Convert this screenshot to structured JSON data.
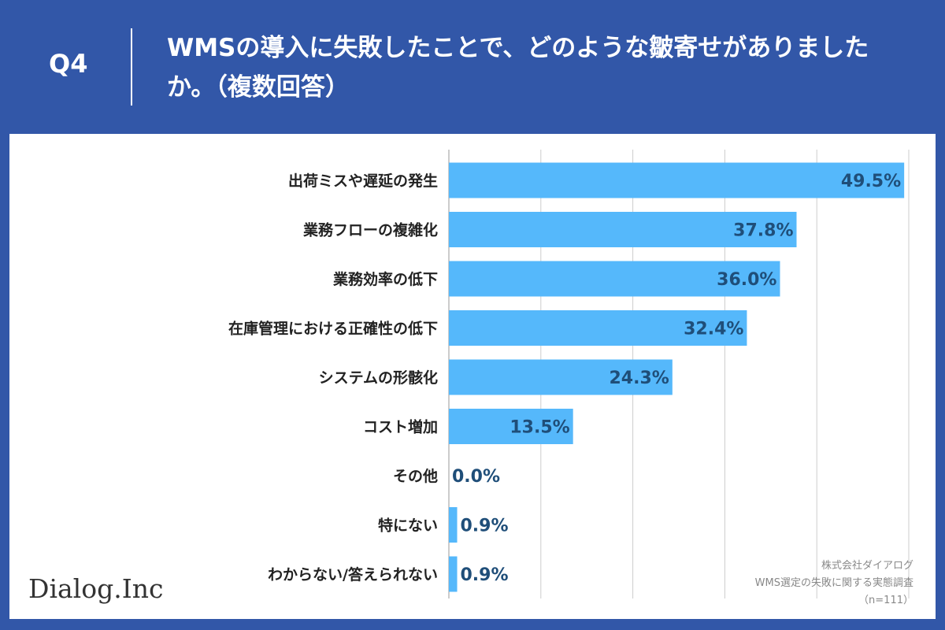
{
  "header": {
    "qnum": "Q4",
    "title": "WMSの導入に失敗したことで、どのような皺寄せがありましたか。（複数回答）"
  },
  "chart_data": {
    "type": "bar",
    "orientation": "horizontal",
    "categories": [
      "出荷ミスや遅延の発生",
      "業務フローの複雑化",
      "業務効率の低下",
      "在庫管理における正確性の低下",
      "システムの形骸化",
      "コスト増加",
      "その他",
      "特にない",
      "わからない/答えられない"
    ],
    "values": [
      49.5,
      37.8,
      36.0,
      32.4,
      24.3,
      13.5,
      0.0,
      0.9,
      0.9
    ],
    "value_labels": [
      "49.5%",
      "37.8%",
      "36.0%",
      "32.4%",
      "24.3%",
      "13.5%",
      "0.0%",
      "0.9%",
      "0.9%"
    ],
    "xlim": [
      0,
      50
    ],
    "grid": true,
    "bar_color": "#55b8fb",
    "label_color": "#1f4e79"
  },
  "footer": {
    "logo": "Dialog.Inc",
    "source_company": "株式会社ダイアログ",
    "source_survey": "WMS選定の失敗に関する実態調査",
    "source_n": "（n=111）"
  }
}
